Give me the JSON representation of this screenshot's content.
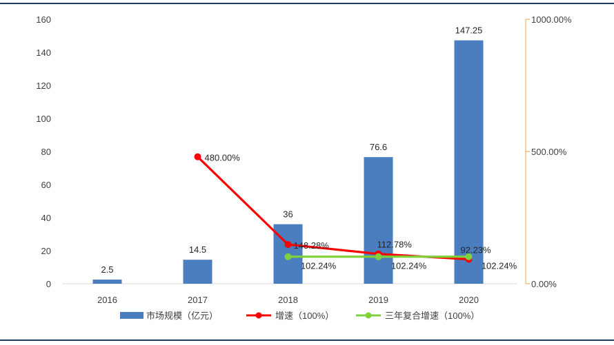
{
  "colors": {
    "bar": "#4a7ebf",
    "growth": "#ff0000",
    "cagr": "#7fd13b",
    "right_axis": "#e8a33d",
    "rule": "#1f3864"
  },
  "chart_data": {
    "type": "bar",
    "categories": [
      "2016",
      "2017",
      "2018",
      "2019",
      "2020"
    ],
    "ylim": [
      0,
      160
    ],
    "yticks": [
      0,
      20,
      40,
      60,
      80,
      100,
      120,
      140,
      160
    ],
    "y2lim": [
      0,
      1000
    ],
    "y2ticks": [
      "0.00%",
      "500.00%",
      "1000.00%"
    ],
    "y2tick_values": [
      0,
      500,
      1000
    ],
    "grid": false,
    "legend_position": "bottom",
    "series": [
      {
        "name": "市场规模（亿元）",
        "type": "bar",
        "axis": "left",
        "values": [
          2.5,
          14.5,
          36,
          76.6,
          147.25
        ],
        "labels": [
          "2.5",
          "14.5",
          "36",
          "76.6",
          "147.25"
        ]
      },
      {
        "name": "增速（100%）",
        "type": "line",
        "axis": "right",
        "values": [
          null,
          480.0,
          148.28,
          112.78,
          92.23
        ],
        "labels": [
          "",
          "480.00%",
          "148.28%",
          "112.78%",
          "92.23%"
        ]
      },
      {
        "name": "三年复合增速（100%）",
        "type": "line",
        "axis": "right",
        "values": [
          null,
          null,
          102.24,
          102.24,
          102.24
        ],
        "labels": [
          "",
          "",
          "102.24%",
          "102.24%",
          "102.24%"
        ]
      }
    ]
  }
}
